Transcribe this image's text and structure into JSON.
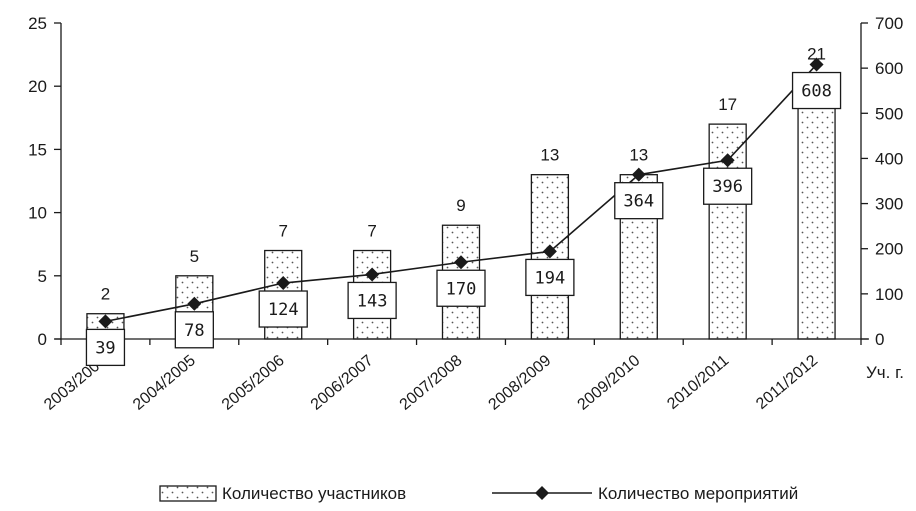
{
  "chart_data": {
    "type": "bar+line",
    "categories": [
      "2003/2004",
      "2004/2005",
      "2005/2006",
      "2006/2007",
      "2007/2008",
      "2008/2009",
      "2009/2010",
      "2010/2011",
      "2011/2012"
    ],
    "x_axis_unit": "Уч. г.",
    "series": [
      {
        "name": "Количество участников",
        "type": "bar",
        "axis": "left",
        "values": [
          2,
          5,
          7,
          7,
          9,
          13,
          13,
          17,
          21
        ]
      },
      {
        "name": "Количество мероприятий",
        "type": "line",
        "axis": "right",
        "values": [
          39,
          78,
          124,
          143,
          170,
          194,
          364,
          396,
          608
        ]
      }
    ],
    "y_left": {
      "ylim": [
        0,
        25
      ],
      "ticks": [
        "0",
        "5",
        "10",
        "15",
        "20",
        "25"
      ]
    },
    "y_right": {
      "ylim": [
        0,
        700
      ],
      "ticks": [
        "0",
        "100",
        "200",
        "300",
        "400",
        "500",
        "600",
        "700"
      ]
    },
    "grid": false,
    "legend": "bottom",
    "colors": {
      "bar_fill": "#ffffff",
      "bar_dots": "#555555",
      "stroke": "#1a1a1a"
    }
  }
}
